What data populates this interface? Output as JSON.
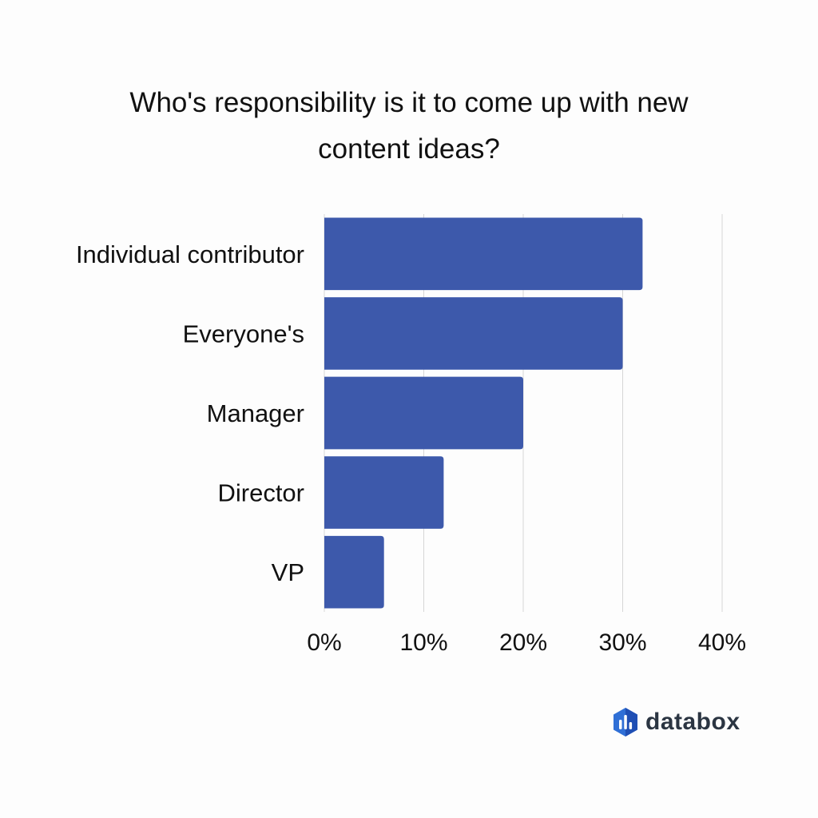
{
  "chart_data": {
    "type": "bar",
    "orientation": "horizontal",
    "title": "Who's responsibility is it to come up with new content ideas?",
    "categories": [
      "Individual contributor",
      "Everyone's",
      "Manager",
      "Director",
      "VP"
    ],
    "values": [
      32,
      30,
      20,
      12,
      6
    ],
    "xlim": [
      0,
      40
    ],
    "xticks": [
      0,
      10,
      20,
      30,
      40
    ],
    "tick_labels": [
      "0%",
      "10%",
      "20%",
      "30%",
      "40%"
    ],
    "grid": "vertical",
    "bar_color": "#3d59ab"
  },
  "brand": {
    "name": "databox",
    "icon": "databox-logo-icon"
  }
}
